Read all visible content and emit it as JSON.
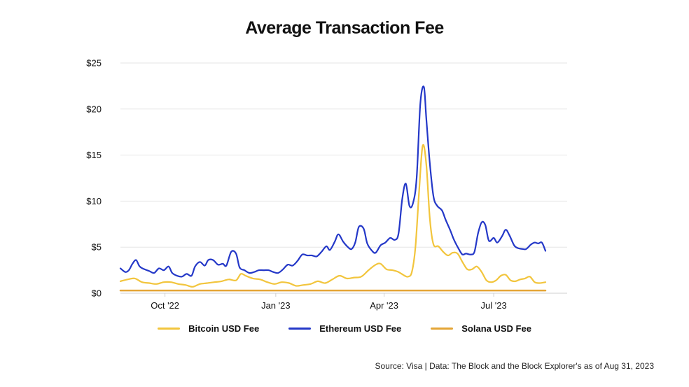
{
  "chart_data": {
    "type": "line",
    "title": "Average Transaction Fee",
    "xlabel": "",
    "ylabel": "",
    "ylim": [
      0,
      25
    ],
    "y_ticks": [
      0,
      5,
      10,
      15,
      20,
      25
    ],
    "y_tick_labels": [
      "$0",
      "$5",
      "$10",
      "$15",
      "$20",
      "$25"
    ],
    "x_range": [
      "2022-08-25",
      "2023-08-31"
    ],
    "x_ticks": [
      {
        "date": "2022-10-01",
        "label": "Oct '22"
      },
      {
        "date": "2023-01-01",
        "label": "Jan '23"
      },
      {
        "date": "2023-04-01",
        "label": "Apr '23"
      },
      {
        "date": "2023-07-01",
        "label": "Jul '23"
      }
    ],
    "grid": true,
    "legend_position": "bottom",
    "series": [
      {
        "name": "Ethereum USD Fee",
        "color": "#2438c8",
        "points": [
          [
            "2022-08-25",
            2.7
          ],
          [
            "2022-08-29",
            2.3
          ],
          [
            "2022-09-01",
            2.5
          ],
          [
            "2022-09-04",
            3.2
          ],
          [
            "2022-09-07",
            3.6
          ],
          [
            "2022-09-10",
            2.9
          ],
          [
            "2022-09-14",
            2.6
          ],
          [
            "2022-09-18",
            2.4
          ],
          [
            "2022-09-22",
            2.2
          ],
          [
            "2022-09-26",
            2.7
          ],
          [
            "2022-09-30",
            2.5
          ],
          [
            "2022-10-04",
            2.9
          ],
          [
            "2022-10-07",
            2.2
          ],
          [
            "2022-10-11",
            1.9
          ],
          [
            "2022-10-15",
            1.8
          ],
          [
            "2022-10-19",
            2.1
          ],
          [
            "2022-10-23",
            1.9
          ],
          [
            "2022-10-26",
            2.9
          ],
          [
            "2022-10-30",
            3.4
          ],
          [
            "2022-11-03",
            3.0
          ],
          [
            "2022-11-06",
            3.6
          ],
          [
            "2022-11-10",
            3.6
          ],
          [
            "2022-11-14",
            3.1
          ],
          [
            "2022-11-18",
            3.2
          ],
          [
            "2022-11-21",
            3.0
          ],
          [
            "2022-11-25",
            4.5
          ],
          [
            "2022-11-29",
            4.3
          ],
          [
            "2022-12-02",
            2.8
          ],
          [
            "2022-12-06",
            2.5
          ],
          [
            "2022-12-10",
            2.2
          ],
          [
            "2022-12-14",
            2.3
          ],
          [
            "2022-12-18",
            2.5
          ],
          [
            "2022-12-22",
            2.5
          ],
          [
            "2022-12-26",
            2.5
          ],
          [
            "2022-12-30",
            2.3
          ],
          [
            "2023-01-03",
            2.2
          ],
          [
            "2023-01-07",
            2.6
          ],
          [
            "2023-01-11",
            3.1
          ],
          [
            "2023-01-15",
            3.0
          ],
          [
            "2023-01-19",
            3.5
          ],
          [
            "2023-01-23",
            4.2
          ],
          [
            "2023-01-27",
            4.1
          ],
          [
            "2023-01-31",
            4.1
          ],
          [
            "2023-02-04",
            4.0
          ],
          [
            "2023-02-08",
            4.5
          ],
          [
            "2023-02-12",
            5.1
          ],
          [
            "2023-02-15",
            4.7
          ],
          [
            "2023-02-19",
            5.6
          ],
          [
            "2023-02-22",
            6.4
          ],
          [
            "2023-02-26",
            5.6
          ],
          [
            "2023-03-02",
            5.0
          ],
          [
            "2023-03-05",
            4.8
          ],
          [
            "2023-03-08",
            5.5
          ],
          [
            "2023-03-11",
            7.2
          ],
          [
            "2023-03-15",
            7.0
          ],
          [
            "2023-03-18",
            5.4
          ],
          [
            "2023-03-22",
            4.6
          ],
          [
            "2023-03-25",
            4.4
          ],
          [
            "2023-03-29",
            5.2
          ],
          [
            "2023-04-02",
            5.5
          ],
          [
            "2023-04-06",
            6.0
          ],
          [
            "2023-04-10",
            5.8
          ],
          [
            "2023-04-13",
            6.5
          ],
          [
            "2023-04-16",
            10.2
          ],
          [
            "2023-04-19",
            11.9
          ],
          [
            "2023-04-22",
            9.5
          ],
          [
            "2023-04-25",
            9.8
          ],
          [
            "2023-04-28",
            12.5
          ],
          [
            "2023-05-01",
            20.5
          ],
          [
            "2023-05-04",
            22.4
          ],
          [
            "2023-05-06",
            19.0
          ],
          [
            "2023-05-09",
            14.0
          ],
          [
            "2023-05-12",
            10.5
          ],
          [
            "2023-05-15",
            9.5
          ],
          [
            "2023-05-19",
            9.0
          ],
          [
            "2023-05-22",
            8.0
          ],
          [
            "2023-05-26",
            6.8
          ],
          [
            "2023-05-29",
            5.8
          ],
          [
            "2023-06-02",
            4.8
          ],
          [
            "2023-06-05",
            4.2
          ],
          [
            "2023-06-08",
            4.3
          ],
          [
            "2023-06-12",
            4.2
          ],
          [
            "2023-06-15",
            4.5
          ],
          [
            "2023-06-18",
            6.5
          ],
          [
            "2023-06-21",
            7.7
          ],
          [
            "2023-06-24",
            7.4
          ],
          [
            "2023-06-27",
            5.7
          ],
          [
            "2023-07-01",
            6.0
          ],
          [
            "2023-07-04",
            5.5
          ],
          [
            "2023-07-08",
            6.2
          ],
          [
            "2023-07-11",
            6.9
          ],
          [
            "2023-07-14",
            6.3
          ],
          [
            "2023-07-18",
            5.2
          ],
          [
            "2023-07-21",
            4.9
          ],
          [
            "2023-07-25",
            4.8
          ],
          [
            "2023-07-28",
            4.8
          ],
          [
            "2023-08-01",
            5.3
          ],
          [
            "2023-08-04",
            5.5
          ],
          [
            "2023-08-07",
            5.4
          ],
          [
            "2023-08-10",
            5.5
          ],
          [
            "2023-08-13",
            4.6
          ]
        ]
      },
      {
        "name": "Bitcoin USD Fee",
        "color": "#f2c53d",
        "points": [
          [
            "2022-08-25",
            1.3
          ],
          [
            "2022-08-31",
            1.5
          ],
          [
            "2022-09-06",
            1.6
          ],
          [
            "2022-09-12",
            1.2
          ],
          [
            "2022-09-18",
            1.1
          ],
          [
            "2022-09-24",
            1.0
          ],
          [
            "2022-09-30",
            1.2
          ],
          [
            "2022-10-06",
            1.2
          ],
          [
            "2022-10-12",
            1.0
          ],
          [
            "2022-10-18",
            0.9
          ],
          [
            "2022-10-24",
            0.7
          ],
          [
            "2022-10-30",
            1.0
          ],
          [
            "2022-11-05",
            1.1
          ],
          [
            "2022-11-11",
            1.2
          ],
          [
            "2022-11-17",
            1.3
          ],
          [
            "2022-11-23",
            1.5
          ],
          [
            "2022-11-29",
            1.4
          ],
          [
            "2022-12-03",
            2.1
          ],
          [
            "2022-12-07",
            1.9
          ],
          [
            "2022-12-13",
            1.6
          ],
          [
            "2022-12-19",
            1.5
          ],
          [
            "2022-12-25",
            1.2
          ],
          [
            "2022-12-31",
            1.0
          ],
          [
            "2023-01-06",
            1.2
          ],
          [
            "2023-01-12",
            1.1
          ],
          [
            "2023-01-18",
            0.8
          ],
          [
            "2023-01-24",
            0.9
          ],
          [
            "2023-01-30",
            1.0
          ],
          [
            "2023-02-05",
            1.3
          ],
          [
            "2023-02-11",
            1.1
          ],
          [
            "2023-02-17",
            1.5
          ],
          [
            "2023-02-23",
            1.9
          ],
          [
            "2023-03-01",
            1.6
          ],
          [
            "2023-03-07",
            1.7
          ],
          [
            "2023-03-13",
            1.8
          ],
          [
            "2023-03-19",
            2.5
          ],
          [
            "2023-03-25",
            3.1
          ],
          [
            "2023-03-29",
            3.2
          ],
          [
            "2023-04-03",
            2.6
          ],
          [
            "2023-04-08",
            2.5
          ],
          [
            "2023-04-13",
            2.3
          ],
          [
            "2023-04-18",
            1.9
          ],
          [
            "2023-04-21",
            1.8
          ],
          [
            "2023-04-24",
            2.3
          ],
          [
            "2023-04-27",
            5.0
          ],
          [
            "2023-04-30",
            11.0
          ],
          [
            "2023-05-03",
            16.0
          ],
          [
            "2023-05-06",
            14.0
          ],
          [
            "2023-05-09",
            8.0
          ],
          [
            "2023-05-12",
            5.3
          ],
          [
            "2023-05-16",
            5.1
          ],
          [
            "2023-05-20",
            4.5
          ],
          [
            "2023-05-24",
            4.1
          ],
          [
            "2023-05-28",
            4.4
          ],
          [
            "2023-06-01",
            4.3
          ],
          [
            "2023-06-05",
            3.4
          ],
          [
            "2023-06-09",
            2.6
          ],
          [
            "2023-06-13",
            2.6
          ],
          [
            "2023-06-17",
            2.9
          ],
          [
            "2023-06-21",
            2.3
          ],
          [
            "2023-06-25",
            1.4
          ],
          [
            "2023-06-29",
            1.2
          ],
          [
            "2023-07-03",
            1.4
          ],
          [
            "2023-07-07",
            1.9
          ],
          [
            "2023-07-11",
            2.0
          ],
          [
            "2023-07-15",
            1.4
          ],
          [
            "2023-07-19",
            1.3
          ],
          [
            "2023-07-23",
            1.5
          ],
          [
            "2023-07-27",
            1.6
          ],
          [
            "2023-07-31",
            1.8
          ],
          [
            "2023-08-04",
            1.2
          ],
          [
            "2023-08-08",
            1.1
          ],
          [
            "2023-08-13",
            1.2
          ]
        ]
      },
      {
        "name": "Solana USD Fee",
        "color": "#e4a536",
        "points": [
          [
            "2022-08-25",
            0.3
          ],
          [
            "2022-11-01",
            0.3
          ],
          [
            "2023-02-01",
            0.3
          ],
          [
            "2023-05-01",
            0.3
          ],
          [
            "2023-08-13",
            0.3
          ]
        ]
      }
    ],
    "legend_order": [
      1,
      0,
      2
    ]
  },
  "source_note": "Source: Visa | Data: The Block and the Block Explorer's as of Aug 31, 2023"
}
